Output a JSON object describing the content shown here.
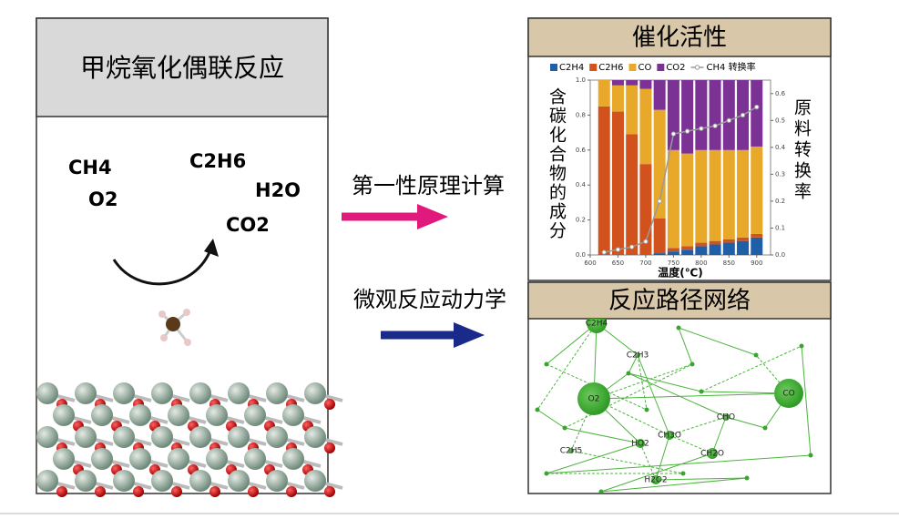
{
  "left_panel": {
    "title": "甲烷氧化偶联反应",
    "species": [
      "CH4",
      "O2",
      "C2H6",
      "H2O",
      "CO2"
    ]
  },
  "methods": [
    "第一性原理计算",
    "微观反应动力学"
  ],
  "activity_panel": {
    "title": "催化活性",
    "chart_data": {
      "type": "bar",
      "stacked": true,
      "x": [
        625,
        650,
        675,
        700,
        725,
        750,
        775,
        800,
        825,
        850,
        875,
        900
      ],
      "xlim": [
        600,
        925
      ],
      "xticks": [
        600,
        650,
        700,
        750,
        800,
        850,
        900
      ],
      "x_label": "温度(℃)",
      "y_label": "含碳化合物的成分",
      "y2_label": "原料转换率",
      "ylim": [
        0,
        1
      ],
      "yticks": [
        {
          "value": 0,
          "label": "0.0"
        },
        {
          "value": 0.2,
          "label": "0.2"
        },
        {
          "value": 0.4,
          "label": "0.4"
        },
        {
          "value": 0.6,
          "label": "0.6"
        },
        {
          "value": 0.8,
          "label": "0.8"
        },
        {
          "value": 1,
          "label": "1.0"
        }
      ],
      "y2lim": [
        0,
        0.65
      ],
      "y2ticks": [
        {
          "value": 0,
          "label": "0.0"
        },
        {
          "value": 0.1,
          "label": "0.1"
        },
        {
          "value": 0.2,
          "label": "0.2"
        },
        {
          "value": 0.3,
          "label": "0.3"
        },
        {
          "value": 0.4,
          "label": "0.4"
        },
        {
          "value": 0.5,
          "label": "0.5"
        },
        {
          "value": 0.6,
          "label": "0.6"
        }
      ],
      "series": [
        {
          "name": "C2H4",
          "color": "#1f5fa8",
          "values": [
            0,
            0,
            0,
            0,
            0.01,
            0.02,
            0.03,
            0.05,
            0.06,
            0.07,
            0.08,
            0.1
          ]
        },
        {
          "name": "C2H6",
          "color": "#d2521d",
          "values": [
            0.85,
            0.82,
            0.69,
            0.52,
            0.2,
            0.02,
            0.02,
            0.02,
            0.02,
            0.02,
            0.02,
            0.02
          ]
        },
        {
          "name": "CO",
          "color": "#e8a92a",
          "values": [
            0.15,
            0.15,
            0.28,
            0.43,
            0.62,
            0.56,
            0.53,
            0.53,
            0.52,
            0.51,
            0.5,
            0.5
          ]
        },
        {
          "name": "CO2",
          "color": "#7b3294",
          "values": [
            0,
            0.03,
            0.03,
            0.05,
            0.17,
            0.4,
            0.42,
            0.4,
            0.4,
            0.4,
            0.4,
            0.38
          ]
        },
        {
          "name": "CH4 转换率",
          "color": "#999999",
          "type": "line",
          "axis": "y2",
          "values": [
            0.01,
            0.02,
            0.03,
            0.05,
            0.2,
            0.45,
            0.46,
            0.47,
            0.48,
            0.5,
            0.52,
            0.55
          ]
        }
      ]
    }
  },
  "network": {
    "title": "反应路径网络",
    "nodes": [
      "C2H4",
      "C2H3",
      "O2",
      "CO",
      "CH3O",
      "CHO",
      "HO2",
      "C2H5",
      "CH2O",
      "H2O2"
    ]
  }
}
